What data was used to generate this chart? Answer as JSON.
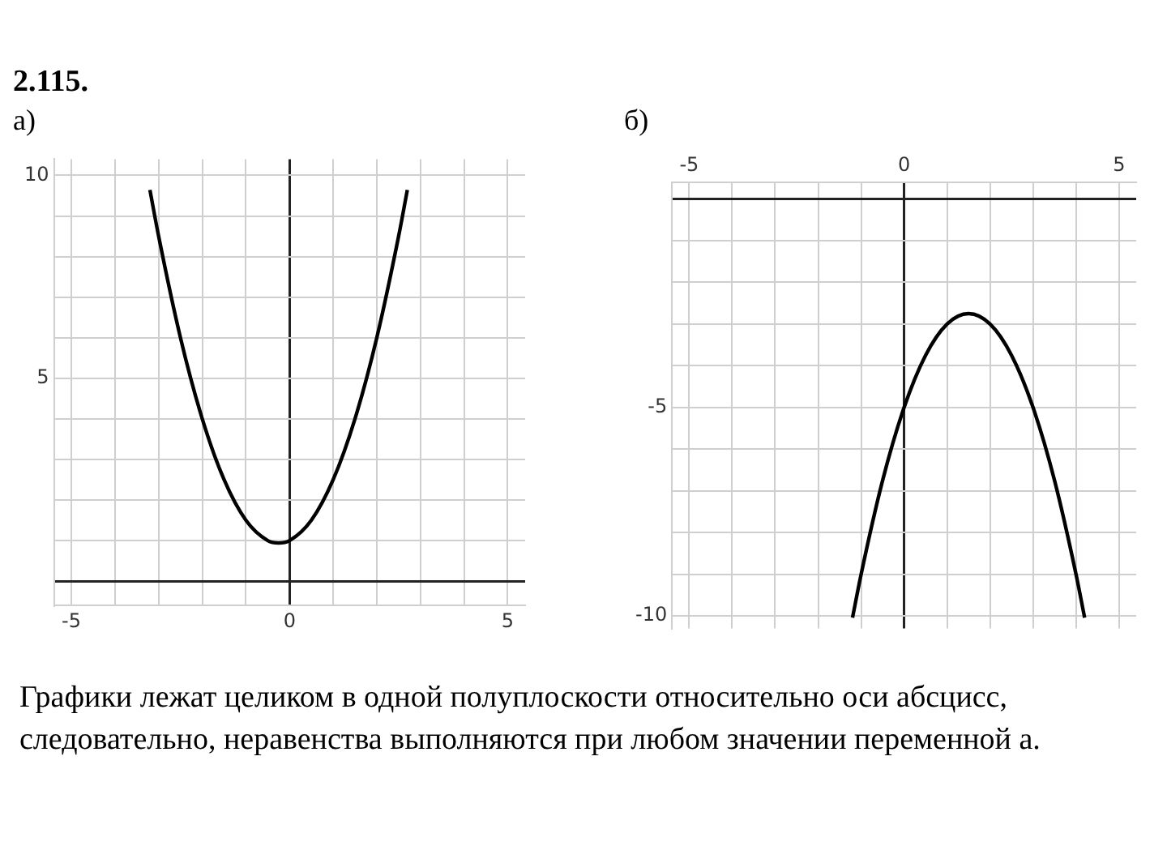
{
  "chart_data": [
    {
      "type": "line",
      "title": "2.115.",
      "subtitle": "а)",
      "x": [
        -3.2,
        -3,
        -2.5,
        -2,
        -1.5,
        -1,
        -0.5,
        -0.25,
        0,
        0.5,
        1,
        1.5,
        2,
        2.5,
        2.7
      ],
      "series": [
        {
          "color": "#000000",
          "values": [
            9.64,
            8.5,
            6.0,
            4.0,
            2.5,
            1.5,
            1.0,
            0.94,
            1.0,
            1.5,
            2.5,
            4.0,
            6.0,
            8.5,
            9.64
          ]
        }
      ],
      "xlim": [
        -5.4,
        5.4
      ],
      "ylim": [
        -0.6,
        10.4
      ],
      "xticks": [
        -5,
        {
          "value": -4,
          "label": null
        },
        {
          "value": -3,
          "label": null
        },
        {
          "value": -2,
          "label": null
        },
        {
          "value": -1,
          "label": null
        },
        0,
        {
          "value": 1,
          "label": null
        },
        {
          "value": 2,
          "label": null
        },
        {
          "value": 3,
          "label": null
        },
        {
          "value": 4,
          "label": null
        },
        5
      ],
      "yticks": [
        {
          "value": 0,
          "label": null
        },
        {
          "value": 1,
          "label": null
        },
        {
          "value": 2,
          "label": null
        },
        {
          "value": 3,
          "label": null
        },
        {
          "value": 4,
          "label": null
        },
        5,
        {
          "value": 6,
          "label": null
        },
        {
          "value": 7,
          "label": null
        },
        {
          "value": 8,
          "label": null
        },
        {
          "value": 9,
          "label": null
        },
        10
      ],
      "grid": true,
      "marker": "none",
      "line_style": "solid",
      "legend": false
    },
    {
      "type": "line",
      "title": "б)",
      "x": [
        -1.2,
        -1,
        -0.5,
        0,
        0.5,
        1,
        1.5,
        2,
        2.5,
        3,
        3.5,
        4,
        4.2
      ],
      "series": [
        {
          "color": "#000000",
          "values": [
            -10.04,
            -9,
            -6.75,
            -5,
            -3.75,
            -3,
            -2.75,
            -3,
            -3.75,
            -5,
            -6.75,
            -9,
            -10.04
          ]
        }
      ],
      "xlim": [
        -5.4,
        5.4
      ],
      "ylim": [
        -10.3,
        0.4
      ],
      "xticks": [
        -5,
        {
          "value": -4,
          "label": null
        },
        {
          "value": -3,
          "label": null
        },
        {
          "value": -2,
          "label": null
        },
        {
          "value": -1,
          "label": null
        },
        0,
        {
          "value": 1,
          "label": null
        },
        {
          "value": 2,
          "label": null
        },
        {
          "value": 3,
          "label": null
        },
        {
          "value": 4,
          "label": null
        },
        5
      ],
      "yticks": [
        -10,
        {
          "value": -9,
          "label": null
        },
        {
          "value": -8,
          "label": null
        },
        {
          "value": -7,
          "label": null
        },
        {
          "value": -6,
          "label": null
        },
        -5,
        {
          "value": -4,
          "label": null
        },
        {
          "value": -3,
          "label": null
        },
        {
          "value": -2,
          "label": null
        },
        {
          "value": -1,
          "label": null
        },
        {
          "value": 0,
          "label": null
        }
      ],
      "grid": true,
      "marker": "none",
      "line_style": "solid",
      "legend": false,
      "annotations": [
        "Графики лежат целиком в одной полуплоскости относительно оси абсцисс,",
        "следовательно, неравенства выполняются при любом значении переменной а."
      ]
    }
  ]
}
